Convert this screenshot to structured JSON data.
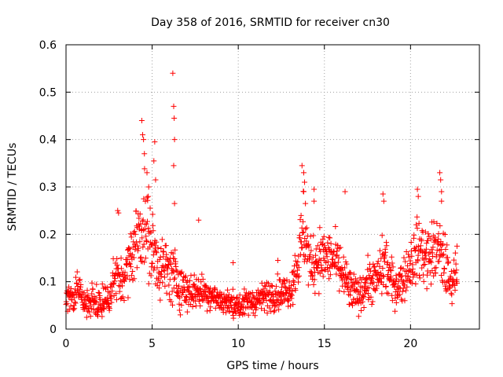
{
  "chart_data": {
    "type": "scatter",
    "title": "Day 358 of 2016, SRMTID for receiver cn30",
    "xlabel": "GPS time / hours",
    "ylabel": "SRMTID / TECUs",
    "xlim": [
      0,
      24
    ],
    "ylim": [
      0,
      0.6
    ],
    "x_ticks": [
      0,
      5,
      10,
      15,
      20
    ],
    "x_tick_labels": [
      "0",
      "5",
      "10",
      "15",
      "20"
    ],
    "y_ticks": [
      0,
      0.1,
      0.2,
      0.3,
      0.4,
      0.5,
      0.6
    ],
    "y_tick_labels": [
      "0",
      "0.1",
      "0.2",
      "0.3",
      "0.4",
      "0.5",
      "0.6"
    ],
    "grid": true,
    "marker": "plus",
    "color": "#ff0000",
    "series": [
      {
        "name": "SRMTID",
        "profile": [
          [
            0.0,
            0.06,
            0.025
          ],
          [
            0.5,
            0.07,
            0.03
          ],
          [
            0.7,
            0.1,
            0.045
          ],
          [
            1.0,
            0.05,
            0.02
          ],
          [
            1.5,
            0.06,
            0.03
          ],
          [
            2.0,
            0.055,
            0.03
          ],
          [
            2.5,
            0.065,
            0.03
          ],
          [
            2.8,
            0.11,
            0.05
          ],
          [
            3.2,
            0.1,
            0.04
          ],
          [
            3.6,
            0.13,
            0.05
          ],
          [
            4.0,
            0.18,
            0.07
          ],
          [
            4.5,
            0.23,
            0.09
          ],
          [
            5.0,
            0.17,
            0.07
          ],
          [
            5.5,
            0.13,
            0.06
          ],
          [
            6.0,
            0.12,
            0.06
          ],
          [
            6.5,
            0.1,
            0.05
          ],
          [
            7.0,
            0.08,
            0.04
          ],
          [
            8.0,
            0.08,
            0.03
          ],
          [
            9.0,
            0.06,
            0.025
          ],
          [
            10.0,
            0.05,
            0.025
          ],
          [
            11.0,
            0.06,
            0.025
          ],
          [
            12.0,
            0.075,
            0.03
          ],
          [
            13.0,
            0.08,
            0.03
          ],
          [
            13.5,
            0.15,
            0.06
          ],
          [
            13.8,
            0.21,
            0.08
          ],
          [
            14.2,
            0.13,
            0.05
          ],
          [
            14.6,
            0.15,
            0.06
          ],
          [
            15.0,
            0.15,
            0.05
          ],
          [
            15.5,
            0.15,
            0.05
          ],
          [
            16.0,
            0.12,
            0.05
          ],
          [
            16.5,
            0.08,
            0.04
          ],
          [
            17.0,
            0.07,
            0.03
          ],
          [
            17.5,
            0.1,
            0.04
          ],
          [
            18.0,
            0.1,
            0.04
          ],
          [
            18.5,
            0.14,
            0.06
          ],
          [
            19.0,
            0.09,
            0.04
          ],
          [
            19.5,
            0.1,
            0.04
          ],
          [
            20.0,
            0.14,
            0.05
          ],
          [
            20.5,
            0.17,
            0.06
          ],
          [
            21.0,
            0.15,
            0.06
          ],
          [
            21.5,
            0.17,
            0.06
          ],
          [
            22.0,
            0.14,
            0.06
          ],
          [
            22.3,
            0.09,
            0.03
          ],
          [
            22.7,
            0.13,
            0.04
          ]
        ],
        "spikes": [
          [
            4.4,
            0.44
          ],
          [
            4.45,
            0.41
          ],
          [
            4.5,
            0.4
          ],
          [
            4.55,
            0.37
          ],
          [
            4.7,
            0.33
          ],
          [
            4.8,
            0.3
          ],
          [
            5.1,
            0.355
          ],
          [
            5.15,
            0.395
          ],
          [
            5.2,
            0.315
          ],
          [
            6.2,
            0.54
          ],
          [
            6.25,
            0.47
          ],
          [
            6.28,
            0.445
          ],
          [
            6.3,
            0.4
          ],
          [
            6.25,
            0.345
          ],
          [
            6.3,
            0.265
          ],
          [
            3.0,
            0.25
          ],
          [
            3.05,
            0.245
          ],
          [
            7.7,
            0.23
          ],
          [
            9.7,
            0.14
          ],
          [
            12.3,
            0.145
          ],
          [
            13.7,
            0.345
          ],
          [
            13.8,
            0.33
          ],
          [
            13.85,
            0.31
          ],
          [
            13.8,
            0.29
          ],
          [
            13.9,
            0.265
          ],
          [
            14.4,
            0.295
          ],
          [
            14.4,
            0.27
          ],
          [
            16.2,
            0.29
          ],
          [
            18.4,
            0.285
          ],
          [
            18.45,
            0.27
          ],
          [
            20.4,
            0.295
          ],
          [
            20.45,
            0.28
          ],
          [
            21.7,
            0.33
          ],
          [
            21.75,
            0.315
          ],
          [
            21.8,
            0.29
          ],
          [
            21.8,
            0.27
          ],
          [
            22.2,
            0.14
          ],
          [
            22.7,
            0.175
          ]
        ],
        "sample_count": 1400
      }
    ]
  }
}
